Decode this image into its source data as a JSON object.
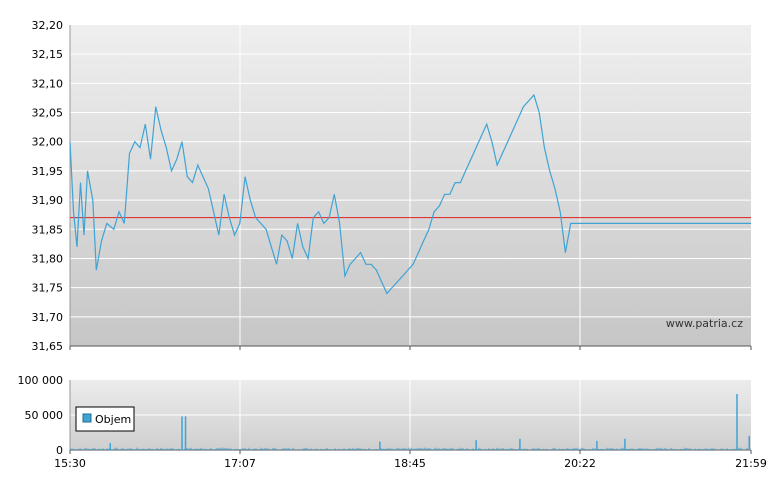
{
  "watermark": "www.patria.cz",
  "chart_data": [
    {
      "type": "line",
      "yticks": [
        "32,20",
        "32,15",
        "32,10",
        "32,05",
        "32,00",
        "31,95",
        "31,90",
        "31,85",
        "31,80",
        "31,75",
        "31,70",
        "31,65"
      ],
      "ylim": [
        31.65,
        32.2
      ],
      "xticks": [
        "15:30",
        "17:07",
        "18:45",
        "20:22",
        "21:59"
      ],
      "xlim": [
        "15:30",
        "21:59"
      ],
      "reference_line": 31.87,
      "grid": true,
      "colors": {
        "line": "#3fa3d4",
        "reference": "#e02020",
        "grid": "#ffffff",
        "bg_top": "#eeeeee",
        "bg_bottom": "#c6c6c6"
      },
      "series": [
        {
          "x": [
            "15:30",
            "15:32",
            "15:34",
            "15:36",
            "15:38",
            "15:40",
            "15:43",
            "15:45",
            "15:48",
            "15:51",
            "15:55",
            "15:58",
            "16:01",
            "16:04",
            "16:07",
            "16:10",
            "16:13",
            "16:16",
            "16:19",
            "16:22",
            "16:25",
            "16:28",
            "16:31",
            "16:34",
            "16:37",
            "16:40",
            "16:43",
            "16:46",
            "16:49",
            "16:52",
            "16:55",
            "16:58",
            "17:01",
            "17:04",
            "17:07",
            "17:10",
            "17:13",
            "17:16",
            "17:19",
            "17:22",
            "17:25",
            "17:28",
            "17:31",
            "17:34",
            "17:37",
            "17:40",
            "17:43",
            "17:46",
            "17:49",
            "17:52",
            "17:55",
            "17:58",
            "18:01",
            "18:04",
            "18:07",
            "18:10",
            "18:13",
            "18:16",
            "18:19",
            "18:22",
            "18:25",
            "18:28",
            "18:31",
            "18:34",
            "18:37",
            "18:40",
            "18:43",
            "18:46",
            "18:49",
            "18:52",
            "18:55",
            "18:58",
            "19:01",
            "19:04",
            "19:07",
            "19:10",
            "19:13",
            "19:16",
            "19:19",
            "19:22",
            "19:25",
            "19:28",
            "19:31",
            "19:34",
            "19:37",
            "19:40",
            "19:43",
            "19:46",
            "19:49",
            "19:52",
            "19:55",
            "19:58",
            "20:01",
            "20:04",
            "20:07",
            "20:10",
            "20:13",
            "20:16",
            "20:19",
            "20:22",
            "20:25",
            "20:28",
            "20:31",
            "20:34",
            "20:37",
            "20:40",
            "20:43",
            "20:46",
            "20:49",
            "20:52",
            "20:55",
            "20:58",
            "21:01",
            "21:04",
            "21:07",
            "21:10",
            "21:13",
            "21:16",
            "21:19",
            "21:22",
            "21:25",
            "21:28",
            "21:31",
            "21:34",
            "21:37",
            "21:40",
            "21:43",
            "21:46",
            "21:49",
            "21:52",
            "21:55",
            "21:57",
            "21:59"
          ],
          "values": [
            32.0,
            31.88,
            31.82,
            31.93,
            31.84,
            31.95,
            31.9,
            31.78,
            31.83,
            31.86,
            31.85,
            31.88,
            31.86,
            31.98,
            32.0,
            31.99,
            32.03,
            31.97,
            32.06,
            32.02,
            31.99,
            31.95,
            31.97,
            32.0,
            31.94,
            31.93,
            31.96,
            31.94,
            31.92,
            31.88,
            31.84,
            31.91,
            31.87,
            31.84,
            31.86,
            31.94,
            31.9,
            31.87,
            31.86,
            31.85,
            31.82,
            31.79,
            31.84,
            31.83,
            31.8,
            31.86,
            31.82,
            31.8,
            31.87,
            31.88,
            31.86,
            31.87,
            31.91,
            31.86,
            31.77,
            31.79,
            31.8,
            31.81,
            31.79,
            31.79,
            31.78,
            31.76,
            31.74,
            31.75,
            31.76,
            31.77,
            31.78,
            31.79,
            31.81,
            31.83,
            31.85,
            31.88,
            31.89,
            31.91,
            31.91,
            31.93,
            31.93,
            31.95,
            31.97,
            31.99,
            32.01,
            32.03,
            32.0,
            31.96,
            31.98,
            32.0,
            32.02,
            32.04,
            32.06,
            32.07,
            32.08,
            32.05,
            31.99,
            31.95,
            31.92,
            31.88,
            31.81,
            31.86,
            31.86,
            31.86,
            31.86,
            31.86,
            31.86,
            31.86,
            31.86,
            31.86,
            31.86,
            31.86,
            31.86,
            31.86,
            31.86,
            31.86,
            31.86,
            31.86,
            31.86,
            31.86,
            31.86,
            31.86,
            31.86,
            31.86,
            31.86,
            31.86,
            31.86,
            31.86,
            31.86,
            31.86,
            31.86,
            31.86,
            31.86,
            31.86,
            31.86,
            31.86,
            31.86
          ]
        }
      ]
    },
    {
      "type": "bar",
      "legend": "Objem",
      "legend_placement": "bottom-left",
      "yticks": [
        "100 000",
        "50 000",
        "0"
      ],
      "ylim": [
        0,
        100000
      ],
      "xticks": [
        "15:30",
        "17:07",
        "18:45",
        "20:22",
        "21:59"
      ],
      "xlim": [
        "15:30",
        "21:59"
      ],
      "colors": {
        "bar": "#3fa3d4"
      },
      "spikes": [
        {
          "x": "15:53",
          "value": 10000
        },
        {
          "x": "16:34",
          "value": 48000
        },
        {
          "x": "16:36",
          "value": 48000
        },
        {
          "x": "18:27",
          "value": 12000
        },
        {
          "x": "19:22",
          "value": 14000
        },
        {
          "x": "19:47",
          "value": 16000
        },
        {
          "x": "20:31",
          "value": 13000
        },
        {
          "x": "20:47",
          "value": 16000
        },
        {
          "x": "21:51",
          "value": 80000
        },
        {
          "x": "21:58",
          "value": 20000
        }
      ],
      "baseline_value": 2000
    }
  ]
}
